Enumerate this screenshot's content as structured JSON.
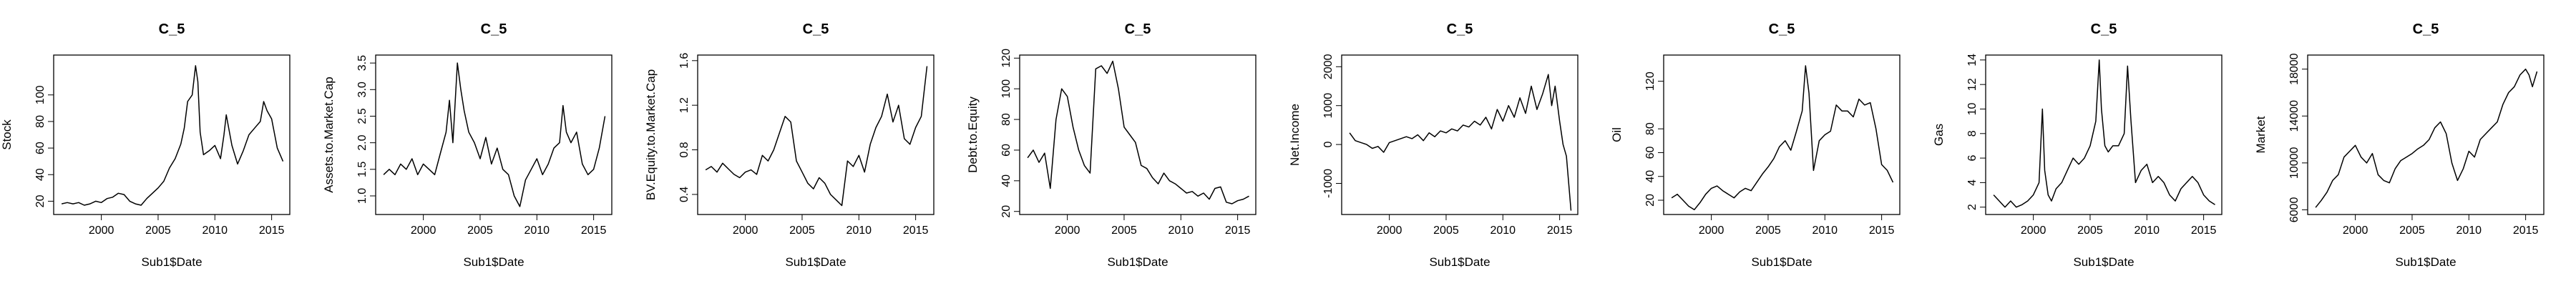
{
  "colors": {
    "line": "#000000",
    "axis": "#000000",
    "background": "#ffffff"
  },
  "chart_data": [
    {
      "type": "line",
      "title": "C_5",
      "xlabel": "Sub1$Date",
      "ylabel": "Stock",
      "xlim": [
        1995.8,
        2016.6
      ],
      "ylim": [
        10,
        130
      ],
      "x_ticks": [
        2000,
        2005,
        2010,
        2015
      ],
      "x_tick_labels": [
        "2000",
        "2005",
        "2010",
        "2015"
      ],
      "y_ticks": [
        20,
        40,
        60,
        80,
        100
      ],
      "y_tick_labels": [
        "20",
        "40",
        "60",
        "80",
        "100"
      ],
      "series": [
        {
          "x": [
            1996.5,
            1997,
            1997.5,
            1998,
            1998.5,
            1999,
            1999.5,
            2000,
            2000.5,
            2001,
            2001.5,
            2002,
            2002.5,
            2003,
            2003.5,
            2004,
            2004.5,
            2005,
            2005.5,
            2006,
            2006.5,
            2007,
            2007.3,
            2007.6,
            2008,
            2008.3,
            2008.5,
            2008.7,
            2009,
            2009.5,
            2010,
            2010.5,
            2010.8,
            2011,
            2011.5,
            2012,
            2012.5,
            2013,
            2013.5,
            2014,
            2014.3,
            2014.6,
            2015,
            2015.5,
            2016
          ],
          "values": [
            18,
            19,
            18,
            19,
            17,
            18,
            20,
            19,
            22,
            23,
            26,
            25,
            20,
            18,
            17,
            22,
            26,
            30,
            35,
            45,
            52,
            63,
            75,
            95,
            100,
            122,
            110,
            72,
            55,
            58,
            62,
            52,
            70,
            85,
            62,
            48,
            58,
            70,
            75,
            80,
            95,
            88,
            82,
            60,
            50
          ]
        }
      ]
    },
    {
      "type": "line",
      "title": "C_5",
      "xlabel": "Sub1$Date",
      "ylabel": "Assets.to.Market.Cap",
      "xlim": [
        1995.8,
        2016.6
      ],
      "ylim": [
        0.65,
        3.65
      ],
      "x_ticks": [
        2000,
        2005,
        2010,
        2015
      ],
      "x_tick_labels": [
        "2000",
        "2005",
        "2010",
        "2015"
      ],
      "y_ticks": [
        1.0,
        1.5,
        2.0,
        2.5,
        3.0,
        3.5
      ],
      "y_tick_labels": [
        "1.0",
        "1.5",
        "2.0",
        "2.5",
        "3.0",
        "3.5"
      ],
      "series": [
        {
          "x": [
            1996.5,
            1997,
            1997.5,
            1998,
            1998.5,
            1999,
            1999.5,
            2000,
            2000.5,
            2001,
            2001.5,
            2002,
            2002.3,
            2002.6,
            2003,
            2003.3,
            2003.6,
            2004,
            2004.5,
            2005,
            2005.5,
            2006,
            2006.5,
            2007,
            2007.5,
            2008,
            2008.5,
            2009,
            2009.5,
            2010,
            2010.5,
            2011,
            2011.5,
            2012,
            2012.3,
            2012.6,
            2013,
            2013.5,
            2014,
            2014.5,
            2015,
            2015.5,
            2016
          ],
          "values": [
            1.4,
            1.5,
            1.4,
            1.6,
            1.5,
            1.7,
            1.4,
            1.6,
            1.5,
            1.4,
            1.8,
            2.2,
            2.8,
            2.0,
            3.5,
            3.0,
            2.6,
            2.2,
            2.0,
            1.7,
            2.1,
            1.6,
            1.9,
            1.5,
            1.4,
            1.0,
            0.8,
            1.3,
            1.5,
            1.7,
            1.4,
            1.6,
            1.9,
            2.0,
            2.7,
            2.2,
            2.0,
            2.2,
            1.6,
            1.4,
            1.5,
            1.9,
            2.5
          ]
        }
      ]
    },
    {
      "type": "line",
      "title": "C_5",
      "xlabel": "Sub1$Date",
      "ylabel": "BV.Equity.to.Market.Cap",
      "xlim": [
        1995.8,
        2016.6
      ],
      "ylim": [
        0.22,
        1.65
      ],
      "x_ticks": [
        2000,
        2005,
        2010,
        2015
      ],
      "x_tick_labels": [
        "2000",
        "2005",
        "2010",
        "2015"
      ],
      "y_ticks": [
        0.4,
        0.8,
        1.2,
        1.6
      ],
      "y_tick_labels": [
        "0.4",
        "0.8",
        "1.2",
        "1.6"
      ],
      "series": [
        {
          "x": [
            1996.5,
            1997,
            1997.5,
            1998,
            1998.5,
            1999,
            1999.5,
            2000,
            2000.5,
            2001,
            2001.5,
            2002,
            2002.5,
            2003,
            2003.5,
            2004,
            2004.5,
            2005,
            2005.5,
            2006,
            2006.5,
            2007,
            2007.5,
            2008,
            2008.5,
            2009,
            2009.5,
            2010,
            2010.5,
            2011,
            2011.5,
            2012,
            2012.5,
            2013,
            2013.5,
            2014,
            2014.5,
            2015,
            2015.5,
            2016
          ],
          "values": [
            0.62,
            0.65,
            0.6,
            0.68,
            0.63,
            0.58,
            0.55,
            0.6,
            0.62,
            0.58,
            0.75,
            0.7,
            0.8,
            0.95,
            1.1,
            1.05,
            0.7,
            0.6,
            0.5,
            0.45,
            0.55,
            0.5,
            0.4,
            0.35,
            0.3,
            0.7,
            0.65,
            0.75,
            0.6,
            0.85,
            1.0,
            1.1,
            1.3,
            1.05,
            1.2,
            0.9,
            0.85,
            1.0,
            1.1,
            1.55
          ]
        }
      ]
    },
    {
      "type": "line",
      "title": "C_5",
      "xlabel": "Sub1$Date",
      "ylabel": "Debt.to.Equity",
      "xlim": [
        1995.8,
        2016.6
      ],
      "ylim": [
        18,
        122
      ],
      "x_ticks": [
        2000,
        2005,
        2010,
        2015
      ],
      "x_tick_labels": [
        "2000",
        "2005",
        "2010",
        "2015"
      ],
      "y_ticks": [
        20,
        40,
        60,
        80,
        100,
        120
      ],
      "y_tick_labels": [
        "20",
        "40",
        "60",
        "80",
        "100",
        "120"
      ],
      "series": [
        {
          "x": [
            1996.5,
            1997,
            1997.5,
            1998,
            1998.5,
            1999,
            1999.5,
            2000,
            2000.5,
            2001,
            2001.5,
            2002,
            2002.5,
            2003,
            2003.5,
            2004,
            2004.5,
            2005,
            2005.5,
            2006,
            2006.5,
            2007,
            2007.5,
            2008,
            2008.5,
            2009,
            2009.5,
            2010,
            2010.5,
            2011,
            2011.5,
            2012,
            2012.5,
            2013,
            2013.5,
            2014,
            2014.5,
            2015,
            2015.5,
            2016
          ],
          "values": [
            55,
            60,
            52,
            58,
            35,
            80,
            100,
            95,
            75,
            60,
            50,
            45,
            113,
            115,
            110,
            118,
            100,
            75,
            70,
            65,
            50,
            48,
            42,
            38,
            45,
            40,
            38,
            35,
            32,
            33,
            30,
            32,
            28,
            35,
            36,
            26,
            25,
            27,
            28,
            30
          ]
        }
      ]
    },
    {
      "type": "line",
      "title": "C_5",
      "xlabel": "Sub1$Date",
      "ylabel": "Net.Income",
      "xlim": [
        1995.8,
        2016.6
      ],
      "ylim": [
        -1800,
        2300
      ],
      "x_ticks": [
        2000,
        2005,
        2010,
        2015
      ],
      "x_tick_labels": [
        "2000",
        "2005",
        "2010",
        "2015"
      ],
      "y_ticks": [
        -1000,
        0,
        1000,
        2000
      ],
      "y_tick_labels": [
        "-1000",
        "0",
        "1000",
        "2000"
      ],
      "series": [
        {
          "x": [
            1996.5,
            1997,
            1997.5,
            1998,
            1998.5,
            1999,
            1999.5,
            2000,
            2000.5,
            2001,
            2001.5,
            2002,
            2002.5,
            2003,
            2003.5,
            2004,
            2004.5,
            2005,
            2005.5,
            2006,
            2006.5,
            2007,
            2007.5,
            2008,
            2008.5,
            2009,
            2009.5,
            2010,
            2010.5,
            2011,
            2011.5,
            2012,
            2012.5,
            2013,
            2013.5,
            2014,
            2014.3,
            2014.6,
            2015,
            2015.3,
            2015.6,
            2016
          ],
          "values": [
            300,
            100,
            50,
            0,
            -100,
            -50,
            -200,
            50,
            100,
            150,
            200,
            150,
            250,
            100,
            300,
            200,
            350,
            300,
            400,
            350,
            500,
            450,
            600,
            500,
            700,
            400,
            900,
            600,
            1000,
            700,
            1200,
            800,
            1500,
            900,
            1300,
            1800,
            1000,
            1500,
            600,
            0,
            -300,
            -1700
          ]
        }
      ]
    },
    {
      "type": "line",
      "title": "C_5",
      "xlabel": "Sub1$Date",
      "ylabel": "Oil",
      "xlim": [
        1995.8,
        2016.6
      ],
      "ylim": [
        8,
        142
      ],
      "x_ticks": [
        2000,
        2005,
        2010,
        2015
      ],
      "x_tick_labels": [
        "2000",
        "2005",
        "2010",
        "2015"
      ],
      "y_ticks": [
        20,
        40,
        60,
        80,
        120
      ],
      "y_tick_labels": [
        "20",
        "40",
        "60",
        "80",
        "120"
      ],
      "series": [
        {
          "x": [
            1996.5,
            1997,
            1997.5,
            1998,
            1998.5,
            1999,
            1999.5,
            2000,
            2000.5,
            2001,
            2001.5,
            2002,
            2002.5,
            2003,
            2003.5,
            2004,
            2004.5,
            2005,
            2005.5,
            2006,
            2006.5,
            2007,
            2007.5,
            2008,
            2008.3,
            2008.6,
            2009,
            2009.5,
            2010,
            2010.5,
            2011,
            2011.5,
            2012,
            2012.5,
            2013,
            2013.5,
            2014,
            2014.5,
            2015,
            2015.5,
            2016
          ],
          "values": [
            22,
            25,
            20,
            15,
            12,
            18,
            25,
            30,
            32,
            28,
            25,
            22,
            27,
            30,
            28,
            35,
            42,
            48,
            55,
            65,
            70,
            62,
            78,
            95,
            133,
            110,
            45,
            70,
            75,
            78,
            100,
            95,
            95,
            90,
            105,
            100,
            102,
            80,
            50,
            45,
            35
          ]
        }
      ]
    },
    {
      "type": "line",
      "title": "C_5",
      "xlabel": "Sub1$Date",
      "ylabel": "Gas",
      "xlim": [
        1995.8,
        2016.6
      ],
      "ylim": [
        1.4,
        14.4
      ],
      "x_ticks": [
        2000,
        2005,
        2010,
        2015
      ],
      "x_tick_labels": [
        "2000",
        "2005",
        "2010",
        "2015"
      ],
      "y_ticks": [
        2,
        4,
        6,
        8,
        10,
        12,
        14
      ],
      "y_tick_labels": [
        "2",
        "4",
        "6",
        "8",
        "10",
        "12",
        "14"
      ],
      "series": [
        {
          "x": [
            1996.5,
            1997,
            1997.5,
            1998,
            1998.5,
            1999,
            1999.5,
            2000,
            2000.5,
            2000.8,
            2001,
            2001.3,
            2001.6,
            2002,
            2002.5,
            2003,
            2003.5,
            2004,
            2004.5,
            2005,
            2005.5,
            2005.8,
            2006,
            2006.3,
            2006.6,
            2007,
            2007.5,
            2008,
            2008.3,
            2008.6,
            2009,
            2009.5,
            2010,
            2010.5,
            2011,
            2011.5,
            2012,
            2012.5,
            2013,
            2013.5,
            2014,
            2014.5,
            2015,
            2015.5,
            2016
          ],
          "values": [
            3,
            2.5,
            2,
            2.5,
            2,
            2.2,
            2.5,
            3,
            4,
            10,
            5,
            3,
            2.5,
            3.5,
            4,
            5,
            6,
            5.5,
            6,
            7,
            9,
            14,
            10,
            7,
            6.5,
            7,
            7,
            8,
            13.5,
            9,
            4,
            5,
            5.5,
            4,
            4.5,
            4,
            3,
            2.5,
            3.5,
            4,
            4.5,
            4,
            3,
            2.5,
            2.2
          ]
        }
      ]
    },
    {
      "type": "line",
      "title": "C_5",
      "xlabel": "Sub1$Date",
      "ylabel": "Market",
      "xlim": [
        1995.8,
        2016.6
      ],
      "ylim": [
        5600,
        19200
      ],
      "x_ticks": [
        2000,
        2005,
        2010,
        2015
      ],
      "x_tick_labels": [
        "2000",
        "2005",
        "2010",
        "2015"
      ],
      "y_ticks": [
        6000,
        10000,
        14000,
        18000
      ],
      "y_tick_labels": [
        "6000",
        "10000",
        "14000",
        "18000"
      ],
      "series": [
        {
          "x": [
            1996.5,
            1997,
            1997.5,
            1998,
            1998.5,
            1999,
            1999.5,
            2000,
            2000.5,
            2001,
            2001.5,
            2002,
            2002.5,
            2003,
            2003.5,
            2004,
            2004.5,
            2005,
            2005.5,
            2006,
            2006.5,
            2007,
            2007.5,
            2008,
            2008.5,
            2009,
            2009.5,
            2010,
            2010.5,
            2011,
            2011.5,
            2012,
            2012.5,
            2013,
            2013.5,
            2014,
            2014.5,
            2015,
            2015.3,
            2015.6,
            2016
          ],
          "values": [
            6200,
            6800,
            7500,
            8500,
            9000,
            10500,
            11000,
            11500,
            10500,
            10000,
            10800,
            9000,
            8500,
            8300,
            9500,
            10200,
            10500,
            10800,
            11200,
            11500,
            12000,
            13000,
            13500,
            12500,
            10000,
            8500,
            9500,
            11000,
            10500,
            12000,
            12500,
            13000,
            13500,
            15000,
            16000,
            16500,
            17500,
            18000,
            17500,
            16500,
            17800
          ]
        }
      ]
    }
  ]
}
